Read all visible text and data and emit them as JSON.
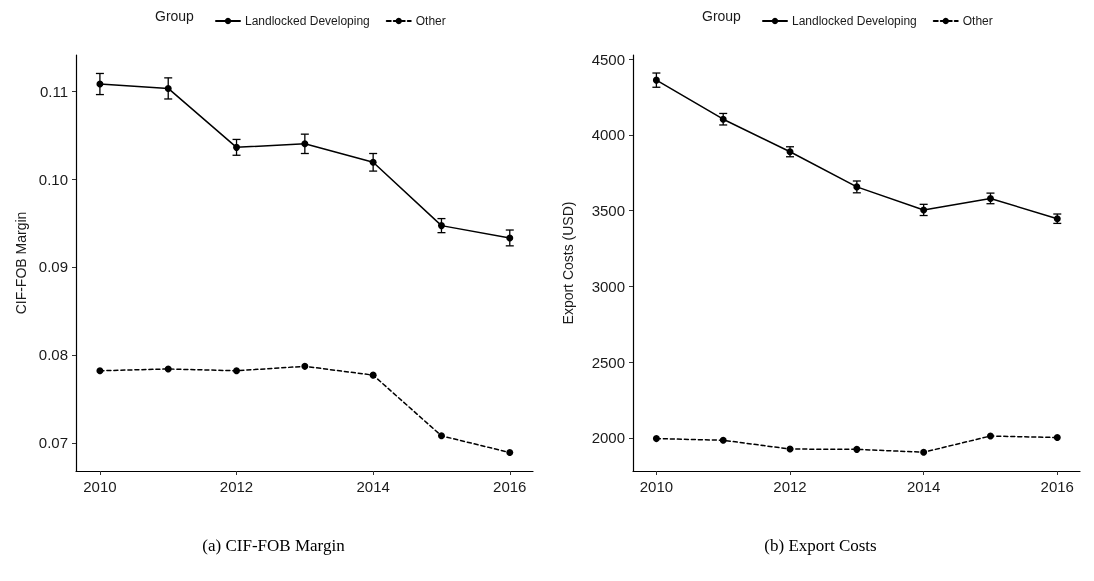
{
  "chart_data": [
    {
      "type": "line",
      "ylabel": "CIF-FOB Margin",
      "legend_title": "Group",
      "legend": "top",
      "marker": "circle",
      "grid": false,
      "annotations": [
        "(a) CIF-FOB Margin"
      ],
      "x": [
        2010,
        2011,
        2012,
        2013,
        2014,
        2015,
        2016
      ],
      "xlim": [
        2009.65,
        2016.34
      ],
      "xticks": [
        2010,
        2012,
        2014,
        2016
      ],
      "ylim": [
        0.0668,
        0.1141
      ],
      "yticks": [
        {
          "value": 0.07,
          "label": "0.07"
        },
        {
          "value": 0.08,
          "label": "0.08"
        },
        {
          "value": 0.09,
          "label": "0.09"
        },
        {
          "value": 0.1,
          "label": "0.10"
        },
        {
          "value": 0.11,
          "label": "0.11"
        }
      ],
      "series": [
        {
          "name": "Landlocked Developing",
          "color": "#000000",
          "line_style": "solid",
          "values": [
            0.1108,
            0.1103,
            0.1036,
            0.104,
            0.1019,
            0.0947,
            0.0933
          ],
          "errors": [
            0.0012,
            0.0012,
            0.0009,
            0.0011,
            0.001,
            0.0008,
            0.0009
          ]
        },
        {
          "name": "Other",
          "color": "#000000",
          "line_style": "dashed",
          "values": [
            0.0782,
            0.0784,
            0.0782,
            0.0787,
            0.0777,
            0.0708,
            0.0689
          ]
        }
      ]
    },
    {
      "type": "line",
      "ylabel": "Export Costs (USD)",
      "legend_title": "Group",
      "legend": "top",
      "marker": "circle",
      "grid": false,
      "annotations": [
        "(b) Export Costs"
      ],
      "x": [
        2010,
        2011,
        2012,
        2013,
        2014,
        2015,
        2016
      ],
      "xlim": [
        2009.65,
        2016.34
      ],
      "xticks": [
        2010,
        2012,
        2014,
        2016
      ],
      "ylim": [
        1781,
        4528
      ],
      "yticks": [
        2000,
        2500,
        3000,
        3500,
        4000,
        4500
      ],
      "series": [
        {
          "name": "Landlocked Developing",
          "color": "#000000",
          "line_style": "solid",
          "values": [
            4362,
            4104,
            3889,
            3657,
            3505,
            3581,
            3447
          ],
          "errors": [
            47,
            38,
            33,
            39,
            37,
            35,
            31
          ]
        },
        {
          "name": "Other",
          "color": "#000000",
          "line_style": "dashed",
          "values": [
            1995,
            1984,
            1926,
            1924,
            1905,
            2012,
            2002
          ]
        }
      ]
    }
  ]
}
